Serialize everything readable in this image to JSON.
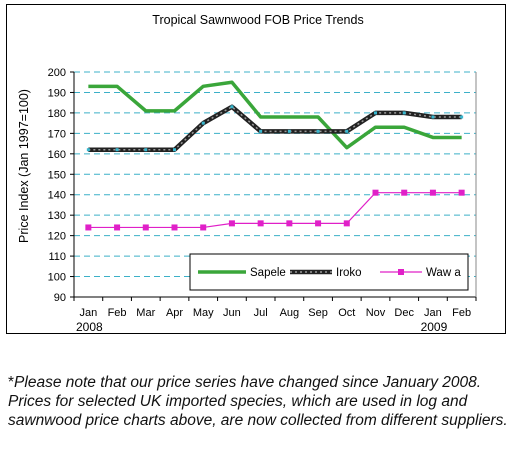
{
  "chart_data": {
    "type": "line",
    "title": "Tropical Sawnwood FOB Price Trends",
    "ylabel": "Price Index (Jan 1997=100)",
    "xlabel": "",
    "ylim": [
      90,
      200
    ],
    "yticks": [
      90,
      100,
      110,
      120,
      130,
      140,
      150,
      160,
      170,
      180,
      190,
      200
    ],
    "grid": "horizontal dashed",
    "legend": "bottom-right",
    "categories": [
      "Jan",
      "Feb",
      "Mar",
      "Apr",
      "May",
      "Jun",
      "Jul",
      "Aug",
      "Sep",
      "Oct",
      "Nov",
      "Dec",
      "Jan",
      "Feb"
    ],
    "year_labels": [
      {
        "index": 0,
        "label": "2008"
      },
      {
        "index": 12,
        "label": "2009"
      }
    ],
    "series": [
      {
        "name": "Sapele",
        "color": "#3aa63a",
        "style": "thick-line",
        "values": [
          193,
          193,
          181,
          181,
          193,
          195,
          178,
          178,
          178,
          163,
          173,
          173,
          168,
          168
        ]
      },
      {
        "name": "Iroko",
        "color": "#222222",
        "marker_color": "#38b8d0",
        "style": "dashed-dark",
        "values": [
          162,
          162,
          162,
          162,
          175,
          183,
          171,
          171,
          171,
          171,
          180,
          180,
          178,
          178
        ]
      },
      {
        "name": "Waw a",
        "color": "#e020c8",
        "style": "line-square-markers",
        "values": [
          124,
          124,
          124,
          124,
          124,
          126,
          126,
          126,
          126,
          126,
          141,
          141,
          141,
          141
        ]
      }
    ]
  },
  "note": {
    "star": "*",
    "text": "Please note that our price series have changed since January 2008. Prices for selected UK imported species, which are used in log and sawnwood price charts above, are now collected from different suppliers."
  }
}
